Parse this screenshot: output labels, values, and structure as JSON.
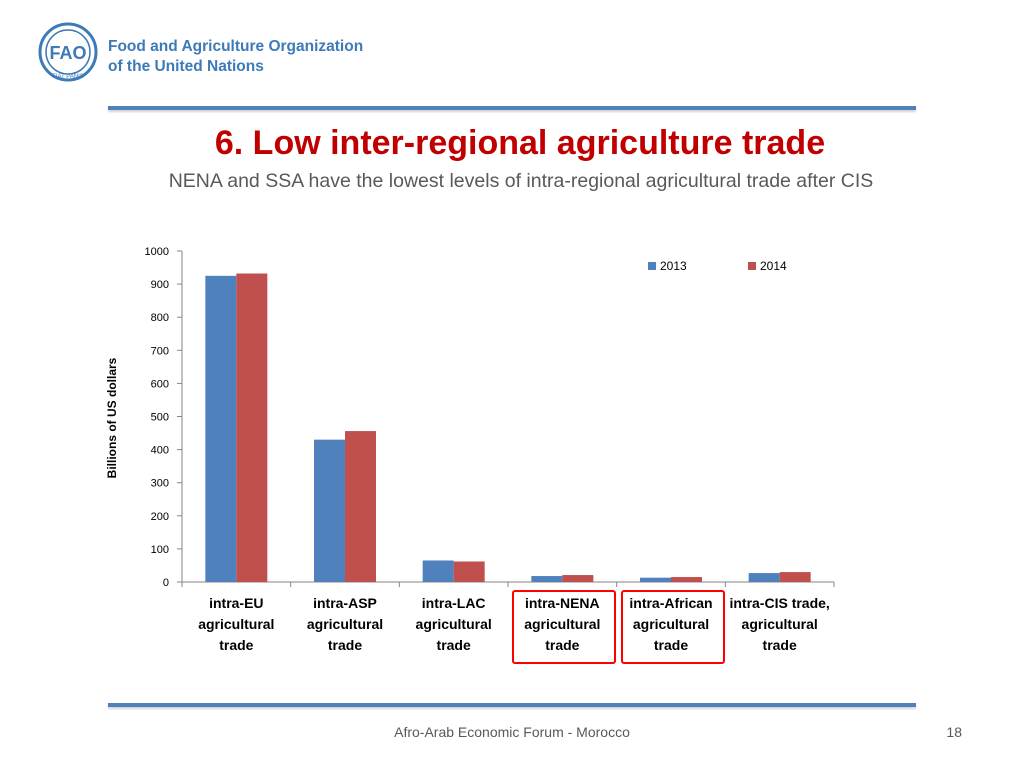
{
  "slide": {
    "org_name_line1": "Food and Agriculture Organization",
    "org_name_line2": "of the United Nations",
    "logo_letters": "FAO",
    "logo_motto": "FIAT PANIS",
    "title": "6. Low inter-regional agriculture trade",
    "subtitle": "NENA and SSA have the lowest levels of intra-regional agricultural trade after CIS",
    "footer": "Afro-Arab Economic Forum - Morocco",
    "page_number": "18"
  },
  "colors": {
    "brand_blue": "#3d7ab8",
    "title_red": "#c00000",
    "series_2013": "#4f81bd",
    "series_2014": "#c0504d",
    "highlight_box": "#ff0000"
  },
  "chart_data": {
    "type": "bar",
    "categories": [
      [
        "intra-EU",
        "agricultural",
        "trade"
      ],
      [
        "intra-ASP",
        "agricultural",
        "trade"
      ],
      [
        "intra-LAC",
        "agricultural",
        "trade"
      ],
      [
        "intra-NENA",
        "agricultural",
        "trade"
      ],
      [
        "intra-African",
        "agricultural",
        "trade"
      ],
      [
        "intra-CIS trade,",
        "agricultural",
        "trade"
      ]
    ],
    "series": [
      {
        "name": "2013",
        "values": [
          925,
          430,
          65,
          18,
          13,
          27
        ]
      },
      {
        "name": "2014",
        "values": [
          932,
          456,
          62,
          21,
          15,
          30
        ]
      }
    ],
    "ylabel": "Billions of US dollars",
    "ylim": [
      0,
      1000
    ],
    "yticks": [
      0,
      100,
      200,
      300,
      400,
      500,
      600,
      700,
      800,
      900,
      1000
    ],
    "legend_position": "top-right",
    "grid": false,
    "highlighted_categories": [
      3,
      4
    ]
  }
}
